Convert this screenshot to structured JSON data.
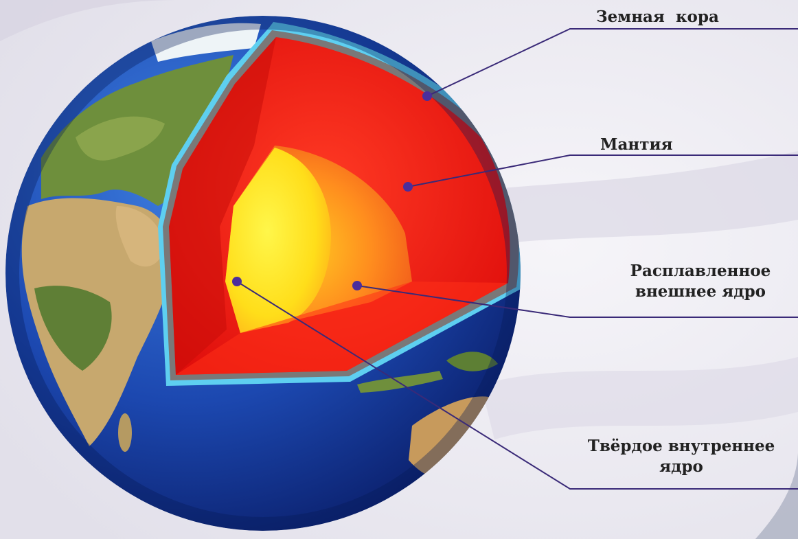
{
  "labels": {
    "crust": "Земная  кора",
    "mantle": "Мантия",
    "outer_core_line1": "Расплавленное",
    "outer_core_line2": "внешнее ядро",
    "inner_core_line1": "Твёрдое внутреннее",
    "inner_core_line2": "ядро"
  },
  "colors": {
    "ocean": "#1e4fb3",
    "land": "#c4a46a",
    "vegetation": "#5c8a3a",
    "crust_edge": "#5fd0f0",
    "mantle": "#ee1c14",
    "outer_core": "#ff8a1a",
    "inner_core": "#ffe61a",
    "leader_line": "#3a2a78",
    "marker": "#4b2e9c"
  }
}
